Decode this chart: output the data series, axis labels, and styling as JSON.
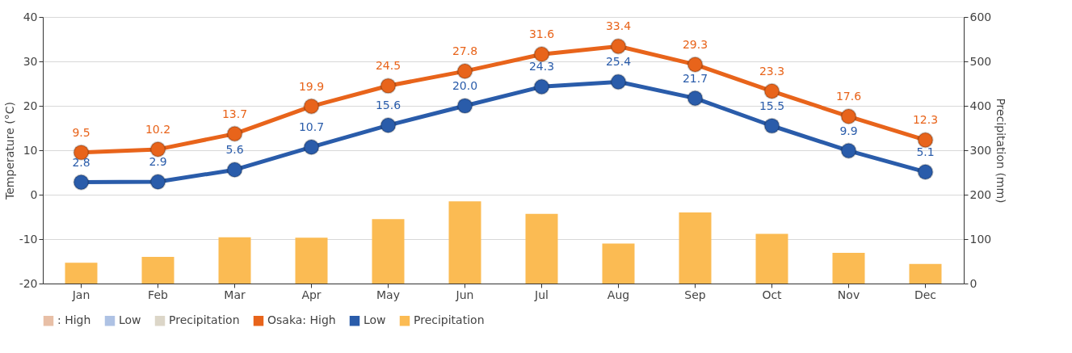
{
  "chart_data": {
    "type": "line",
    "ylabel": "Temperature (°C)",
    "y2label": "Precipitation (mm)",
    "categories": [
      "Jan",
      "Feb",
      "Mar",
      "Apr",
      "May",
      "Jun",
      "Jul",
      "Aug",
      "Sep",
      "Oct",
      "Nov",
      "Dec"
    ],
    "ylim": [
      -20,
      40
    ],
    "yticks": [
      -20,
      -10,
      0,
      10,
      20,
      30,
      40
    ],
    "y2lim": [
      0,
      600
    ],
    "y2ticks": [
      0,
      100,
      200,
      300,
      400,
      500,
      600
    ],
    "grid": "y",
    "legend": "bottom left",
    "marker": "circle",
    "line_style": "solid",
    "series": [
      {
        "name": ": High",
        "axis": "y",
        "color": "#e8bfa6",
        "values": [
          null,
          null,
          null,
          null,
          null,
          null,
          null,
          null,
          null,
          null,
          null,
          null
        ]
      },
      {
        "name": "Low",
        "axis": "y",
        "color": "#aec2e4",
        "values": [
          null,
          null,
          null,
          null,
          null,
          null,
          null,
          null,
          null,
          null,
          null,
          null
        ]
      },
      {
        "name": "Precipitation",
        "type": "bar",
        "axis": "y2",
        "color": "#dcd6c8",
        "values": [
          null,
          null,
          null,
          null,
          null,
          null,
          null,
          null,
          null,
          null,
          null,
          null
        ]
      },
      {
        "name": "Osaka: High",
        "axis": "y",
        "color": "#e8641b",
        "values": [
          9.5,
          10.2,
          13.7,
          19.9,
          24.5,
          27.8,
          31.6,
          33.4,
          29.3,
          23.3,
          17.6,
          12.3
        ],
        "value_labels": [
          "9.5",
          "10.2",
          "13.7",
          "19.9",
          "24.5",
          "27.8",
          "31.6",
          "33.4",
          "29.3",
          "23.3",
          "17.6",
          "12.3"
        ]
      },
      {
        "name": "Low",
        "axis": "y",
        "color": "#2a5caa",
        "values": [
          2.8,
          2.9,
          5.6,
          10.7,
          15.6,
          20.0,
          24.3,
          25.4,
          21.7,
          15.5,
          9.9,
          5.1
        ],
        "value_labels": [
          "2.8",
          "2.9",
          "5.6",
          "10.7",
          "15.6",
          "20.0",
          "24.3",
          "25.4",
          "21.7",
          "15.5",
          "9.9",
          "5.1"
        ]
      },
      {
        "name": "Precipitation",
        "type": "bar",
        "axis": "y2",
        "color": "#fbbb53",
        "values": [
          47,
          60,
          104,
          103,
          145,
          185,
          157,
          90,
          160,
          112,
          69,
          44
        ]
      }
    ]
  }
}
